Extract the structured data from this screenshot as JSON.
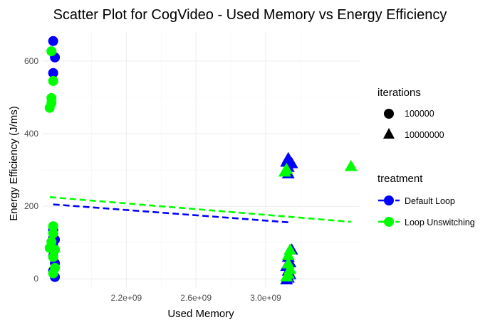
{
  "chart_data": {
    "type": "scatter",
    "title": "Scatter Plot for CogVideo - Used Memory vs Energy Efficiency",
    "xlabel": "Used Memory",
    "ylabel": "Energy Efficiency (J/ms)",
    "xlim": [
      1720000000.0,
      3540000000.0
    ],
    "ylim": [
      -25,
      680
    ],
    "x_ticks": [
      2200000000.0,
      2600000000.0,
      3000000000.0
    ],
    "x_tick_labels": [
      "2.2e+09",
      "2.6e+09",
      "3.0e+09"
    ],
    "y_ticks": [
      0,
      200,
      400,
      600
    ],
    "y_tick_labels": [
      "0",
      "200",
      "400",
      "600"
    ],
    "grid": true,
    "legend_position": "right",
    "colors": {
      "Default Loop": "#0000ff",
      "Loop Unswitching": "#00ff00"
    },
    "legend": {
      "iterations": {
        "title": "iterations",
        "items": [
          "100000",
          "10000000"
        ]
      },
      "treatment": {
        "title": "treatment",
        "items": [
          "Default Loop",
          "Loop Unswitching"
        ]
      }
    },
    "series": [
      {
        "name": "Default Loop",
        "iterations": "100000",
        "shape": "circle",
        "points": [
          [
            1780000000.0,
            655
          ],
          [
            1790000000.0,
            610
          ],
          [
            1780000000.0,
            567
          ],
          [
            1780000000.0,
            135
          ],
          [
            1780000000.0,
            112
          ],
          [
            1790000000.0,
            108
          ],
          [
            1780000000.0,
            92
          ],
          [
            1780000000.0,
            63
          ],
          [
            1790000000.0,
            43
          ],
          [
            1780000000.0,
            22
          ],
          [
            1790000000.0,
            5
          ]
        ]
      },
      {
        "name": "Loop Unswitching",
        "iterations": "100000",
        "shape": "circle",
        "points": [
          [
            1770000000.0,
            627
          ],
          [
            1780000000.0,
            545
          ],
          [
            1770000000.0,
            498
          ],
          [
            1770000000.0,
            485
          ],
          [
            1760000000.0,
            471
          ],
          [
            1780000000.0,
            145
          ],
          [
            1780000000.0,
            125
          ],
          [
            1770000000.0,
            102
          ],
          [
            1760000000.0,
            85
          ],
          [
            1790000000.0,
            80
          ],
          [
            1780000000.0,
            60
          ],
          [
            1790000000.0,
            30
          ],
          [
            1780000000.0,
            15
          ]
        ]
      },
      {
        "name": "Default Loop",
        "iterations": "10000000",
        "shape": "triangle",
        "points": [
          [
            3130000000.0,
            332
          ],
          [
            3120000000.0,
            322
          ],
          [
            3150000000.0,
            318
          ],
          [
            3130000000.0,
            308
          ],
          [
            3120000000.0,
            296
          ],
          [
            3130000000.0,
            290
          ],
          [
            3150000000.0,
            80
          ],
          [
            3130000000.0,
            60
          ],
          [
            3140000000.0,
            45
          ],
          [
            3120000000.0,
            35
          ],
          [
            3130000000.0,
            22
          ],
          [
            3140000000.0,
            12
          ],
          [
            3130000000.0,
            3
          ],
          [
            3120000000.0,
            -2
          ]
        ]
      },
      {
        "name": "Loop Unswitching",
        "iterations": "10000000",
        "shape": "triangle",
        "points": [
          [
            3490000000.0,
            310
          ],
          [
            3120000000.0,
            302
          ],
          [
            3110000000.0,
            295
          ],
          [
            3140000000.0,
            80
          ],
          [
            3130000000.0,
            65
          ],
          [
            3130000000.0,
            42
          ],
          [
            3140000000.0,
            27
          ],
          [
            3130000000.0,
            14
          ],
          [
            3120000000.0,
            6
          ]
        ]
      }
    ],
    "trend_lines": [
      {
        "name": "Default Loop",
        "x": [
          1780000000.0,
          3150000000.0
        ],
        "y": [
          205,
          155
        ]
      },
      {
        "name": "Loop Unswitching",
        "x": [
          1760000000.0,
          3490000000.0
        ],
        "y": [
          225,
          157
        ]
      }
    ]
  }
}
